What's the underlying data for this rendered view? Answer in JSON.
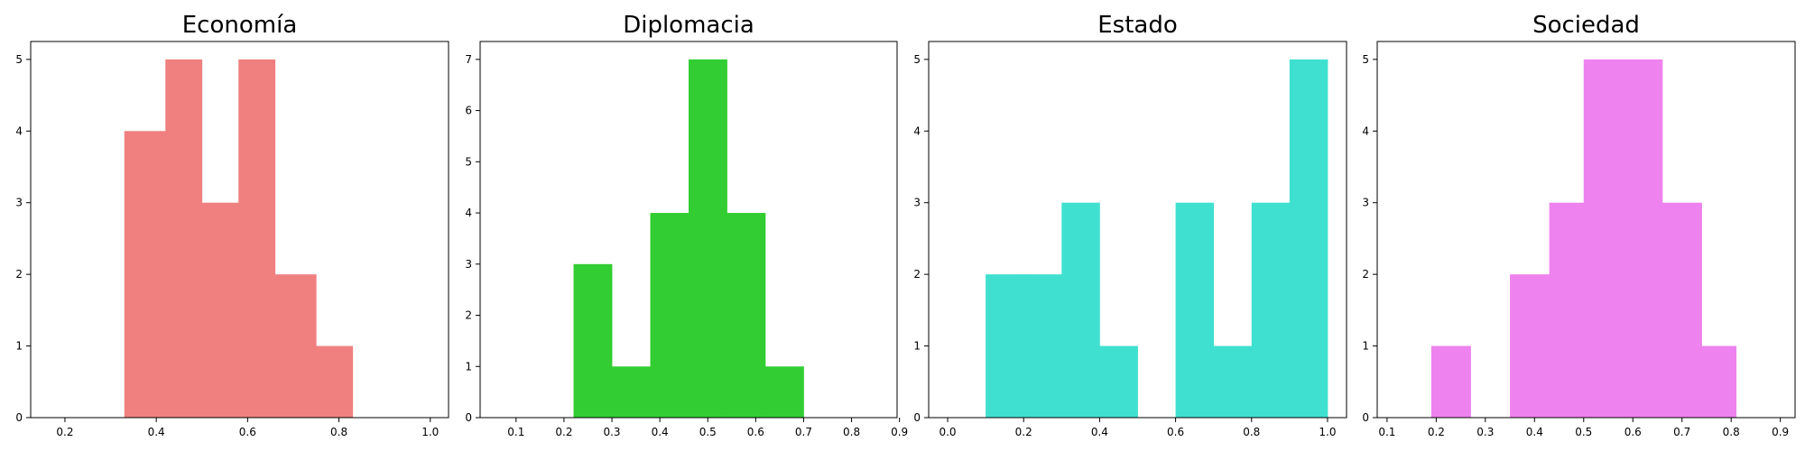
{
  "chart_data": [
    {
      "type": "bar",
      "title": "Economía",
      "color": "#f08080",
      "xlim": [
        0.125,
        1.04
      ],
      "ylim": [
        0,
        5.25
      ],
      "xticks": [
        0.2,
        0.4,
        0.6,
        0.8,
        1.0
      ],
      "xtick_labels": [
        "0.2",
        "0.4",
        "0.6",
        "0.8",
        "1.0"
      ],
      "yticks": [
        0,
        1,
        2,
        3,
        4,
        5
      ],
      "ytick_labels": [
        "0",
        "1",
        "2",
        "3",
        "4",
        "5"
      ],
      "bins": [
        0.33,
        0.42,
        0.5,
        0.58,
        0.66,
        0.75,
        0.83
      ],
      "counts": [
        4,
        5,
        3,
        5,
        2,
        1
      ]
    },
    {
      "type": "bar",
      "title": "Diplomacia",
      "color": "#32cd32",
      "xlim": [
        0.025,
        0.895
      ],
      "ylim": [
        0,
        7.35
      ],
      "xticks": [
        0.1,
        0.2,
        0.3,
        0.4,
        0.5,
        0.6,
        0.7,
        0.8,
        0.9
      ],
      "xtick_labels": [
        "0.1",
        "0.2",
        "0.3",
        "0.4",
        "0.5",
        "0.6",
        "0.7",
        "0.8",
        "0.9"
      ],
      "yticks": [
        0,
        1,
        2,
        3,
        4,
        5,
        6,
        7
      ],
      "ytick_labels": [
        "0",
        "1",
        "2",
        "3",
        "4",
        "5",
        "6",
        "7"
      ],
      "bins": [
        0.22,
        0.3,
        0.38,
        0.46,
        0.54,
        0.62,
        0.7
      ],
      "counts": [
        3,
        1,
        4,
        7,
        4,
        1
      ]
    },
    {
      "type": "bar",
      "title": "Estado",
      "color": "#40e0d0",
      "xlim": [
        -0.05,
        1.05
      ],
      "ylim": [
        0,
        5.25
      ],
      "xticks": [
        0.0,
        0.2,
        0.4,
        0.6,
        0.8,
        1.0
      ],
      "xtick_labels": [
        "0.0",
        "0.2",
        "0.4",
        "0.6",
        "0.8",
        "1.0"
      ],
      "yticks": [
        0,
        1,
        2,
        3,
        4,
        5
      ],
      "ytick_labels": [
        "0",
        "1",
        "2",
        "3",
        "4",
        "5"
      ],
      "bins": [
        0.1,
        0.2,
        0.3,
        0.4,
        0.5,
        0.6,
        0.7,
        0.8,
        0.9,
        1.0
      ],
      "counts": [
        2,
        2,
        3,
        1,
        0,
        3,
        1,
        3,
        5
      ]
    },
    {
      "type": "bar",
      "title": "Sociedad",
      "color": "#ee82ee",
      "xlim": [
        0.08,
        0.93
      ],
      "ylim": [
        0,
        5.25
      ],
      "xticks": [
        0.1,
        0.2,
        0.3,
        0.4,
        0.5,
        0.6,
        0.7,
        0.8,
        0.9
      ],
      "xtick_labels": [
        "0.1",
        "0.2",
        "0.3",
        "0.4",
        "0.5",
        "0.6",
        "0.7",
        "0.8",
        "0.9"
      ],
      "yticks": [
        0,
        1,
        2,
        3,
        4,
        5
      ],
      "ytick_labels": [
        "0",
        "1",
        "2",
        "3",
        "4",
        "5"
      ],
      "bins": [
        0.19,
        0.27,
        0.35,
        0.43,
        0.5,
        0.58,
        0.66,
        0.74,
        0.81
      ],
      "counts": [
        1,
        0,
        2,
        3,
        5,
        5,
        3,
        1
      ]
    }
  ]
}
